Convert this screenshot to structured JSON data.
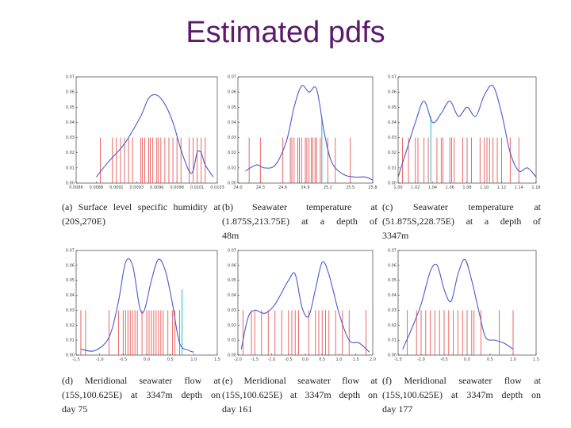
{
  "slide": {
    "title": "Estimated pdfs"
  },
  "colors": {
    "title": "#5b1a6b",
    "kde": "#4a5ad0",
    "samples": "#e02020",
    "truth": "#40c8d8",
    "axis": "#222222"
  },
  "chart_data": [
    {
      "id": "a",
      "type": "line",
      "caption_lines": [
        "(a) Surface level specific humidity at",
        "(20S,270E)"
      ],
      "xlim": [
        0.0086,
        0.01035
      ],
      "ylim": [
        0,
        0.07
      ],
      "xticks": [
        "0.0086",
        "0.0088",
        "0.0091",
        "0.0093",
        "0.0096",
        "0.0098",
        "0.0101",
        "0.0103"
      ],
      "yticks": [
        "0.00",
        "0.01",
        "0.02",
        "0.03",
        "0.04",
        "0.05",
        "0.06",
        "0.07"
      ],
      "kde_points": [
        [
          0.00885,
          0.004
        ],
        [
          0.009,
          0.014
        ],
        [
          0.0092,
          0.026
        ],
        [
          0.0094,
          0.044
        ],
        [
          0.0095,
          0.056
        ],
        [
          0.0096,
          0.058
        ],
        [
          0.0097,
          0.052
        ],
        [
          0.0098,
          0.04
        ],
        [
          0.0099,
          0.022
        ],
        [
          0.01,
          0.008
        ],
        [
          0.01005,
          0.008
        ],
        [
          0.0101,
          0.02
        ],
        [
          0.01015,
          0.02
        ],
        [
          0.0102,
          0.012
        ],
        [
          0.0103,
          0.004
        ]
      ],
      "samples": [
        0.0089,
        0.00905,
        0.0091,
        0.00915,
        0.0092,
        0.00925,
        0.0093,
        0.0094,
        0.00942,
        0.00945,
        0.0095,
        0.00952,
        0.00955,
        0.0096,
        0.00962,
        0.00965,
        0.0097,
        0.00975,
        0.0098,
        0.00985,
        0.0099,
        0.01,
        0.01005,
        0.0101,
        0.01015,
        0.0102
      ],
      "sample_height": 0.03,
      "truth": null
    },
    {
      "id": "b",
      "type": "line",
      "caption_lines": [
        "(b) Seawater temperature at",
        "(1.875S,213.75E) at a depth of",
        "48m"
      ],
      "xlim": [
        24.0,
        25.8
      ],
      "ylim": [
        0,
        0.07
      ],
      "xticks": [
        "24.0",
        "24.3",
        "24.6",
        "24.9",
        "25.2",
        "25.5",
        "25.8"
      ],
      "yticks": [
        "0.00",
        "0.01",
        "0.02",
        "0.03",
        "0.04",
        "0.05",
        "0.06",
        "0.07"
      ],
      "kde_points": [
        [
          24.1,
          0.008
        ],
        [
          24.25,
          0.012
        ],
        [
          24.35,
          0.01
        ],
        [
          24.5,
          0.012
        ],
        [
          24.65,
          0.028
        ],
        [
          24.75,
          0.05
        ],
        [
          24.85,
          0.064
        ],
        [
          24.95,
          0.06
        ],
        [
          25.05,
          0.062
        ],
        [
          25.15,
          0.034
        ],
        [
          25.25,
          0.014
        ],
        [
          25.4,
          0.006
        ],
        [
          25.55,
          0.004
        ],
        [
          25.7,
          0.004
        ],
        [
          25.8,
          0.002
        ]
      ],
      "samples": [
        24.15,
        24.3,
        24.6,
        24.7,
        24.72,
        24.75,
        24.8,
        24.82,
        24.85,
        24.9,
        24.92,
        24.95,
        24.98,
        25.0,
        25.03,
        25.05,
        25.1,
        25.2,
        25.3,
        25.5
      ],
      "sample_height": 0.03,
      "truth": 25.12
    },
    {
      "id": "c",
      "type": "line",
      "caption_lines": [
        "(c) Seawater temperature at",
        "(51.875S,228.75E) at a depth of",
        "3347m"
      ],
      "xlim": [
        1.0,
        1.16
      ],
      "ylim": [
        0,
        0.07
      ],
      "xticks": [
        "1.00",
        "1.02",
        "1.04",
        "1.06",
        "1.08",
        "1.10",
        "1.12",
        "1.14",
        "1.16"
      ],
      "yticks": [
        "0.00",
        "0.01",
        "0.02",
        "0.03",
        "0.04",
        "0.05",
        "0.06",
        "0.07"
      ],
      "kde_points": [
        [
          1.0,
          0.004
        ],
        [
          1.01,
          0.022
        ],
        [
          1.02,
          0.04
        ],
        [
          1.03,
          0.054
        ],
        [
          1.04,
          0.04
        ],
        [
          1.05,
          0.046
        ],
        [
          1.06,
          0.054
        ],
        [
          1.07,
          0.044
        ],
        [
          1.08,
          0.05
        ],
        [
          1.09,
          0.044
        ],
        [
          1.1,
          0.058
        ],
        [
          1.11,
          0.064
        ],
        [
          1.12,
          0.046
        ],
        [
          1.13,
          0.02
        ],
        [
          1.14,
          0.008
        ],
        [
          1.15,
          0.01
        ],
        [
          1.16,
          0.004
        ]
      ],
      "samples": [
        1.005,
        1.012,
        1.02,
        1.023,
        1.03,
        1.035,
        1.045,
        1.05,
        1.052,
        1.06,
        1.062,
        1.065,
        1.075,
        1.08,
        1.085,
        1.095,
        1.1,
        1.103,
        1.106,
        1.11,
        1.115,
        1.12,
        1.13,
        1.14
      ],
      "sample_height": 0.03,
      "truth": 1.038
    },
    {
      "id": "d",
      "type": "line",
      "caption_lines": [
        "(d) Meridional seawater flow at",
        "(15S,100.625E) at 3347m depth on",
        "day 75"
      ],
      "xlim": [
        -1.5,
        1.5
      ],
      "ylim": [
        0,
        0.07
      ],
      "xticks": [
        "-1.5",
        "-1.0",
        "-0.5",
        "0.0",
        "0.5",
        "1.0",
        "1.5"
      ],
      "yticks": [
        "0.00",
        "0.01",
        "0.02",
        "0.03",
        "0.04",
        "0.05",
        "0.06",
        "0.07"
      ],
      "kde_points": [
        [
          -1.4,
          0.004
        ],
        [
          -1.1,
          0.003
        ],
        [
          -0.8,
          0.012
        ],
        [
          -0.6,
          0.036
        ],
        [
          -0.45,
          0.062
        ],
        [
          -0.3,
          0.06
        ],
        [
          -0.15,
          0.032
        ],
        [
          -0.05,
          0.03
        ],
        [
          0.1,
          0.05
        ],
        [
          0.25,
          0.064
        ],
        [
          0.4,
          0.056
        ],
        [
          0.55,
          0.034
        ],
        [
          0.7,
          0.008
        ],
        [
          0.9,
          0.003
        ],
        [
          1.0,
          0.002
        ]
      ],
      "samples": [
        -1.4,
        -1.3,
        -0.8,
        -0.6,
        -0.5,
        -0.45,
        -0.4,
        -0.35,
        -0.3,
        -0.25,
        -0.2,
        -0.1,
        0.0,
        0.05,
        0.1,
        0.15,
        0.2,
        0.25,
        0.3,
        0.35,
        0.45,
        0.55,
        0.6,
        0.7
      ],
      "sample_height": 0.03,
      "truth": 0.75
    },
    {
      "id": "e",
      "type": "line",
      "caption_lines": [
        "(e) Meridional seawater flow at",
        "(15S,100.625E) at 3347m depth on",
        "day 161"
      ],
      "xlim": [
        -2.0,
        2.0
      ],
      "ylim": [
        0,
        0.07
      ],
      "xticks": [
        "-2.0",
        "-1.5",
        "-1.0",
        "-0.5",
        "0.0",
        "0.5",
        "1.0",
        "1.5",
        "2.0"
      ],
      "yticks": [
        "0.00",
        "0.01",
        "0.02",
        "0.03",
        "0.04",
        "0.05",
        "0.06",
        "0.07"
      ],
      "kde_points": [
        [
          -1.9,
          0.004
        ],
        [
          -1.7,
          0.025
        ],
        [
          -1.5,
          0.03
        ],
        [
          -1.2,
          0.028
        ],
        [
          -0.9,
          0.034
        ],
        [
          -0.5,
          0.05
        ],
        [
          -0.3,
          0.054
        ],
        [
          -0.1,
          0.032
        ],
        [
          0.1,
          0.026
        ],
        [
          0.3,
          0.044
        ],
        [
          0.5,
          0.062
        ],
        [
          0.7,
          0.054
        ],
        [
          1.0,
          0.028
        ],
        [
          1.3,
          0.01
        ],
        [
          1.6,
          0.008
        ],
        [
          1.9,
          0.002
        ]
      ],
      "samples": [
        -1.85,
        -1.6,
        -1.5,
        -1.3,
        -1.1,
        -0.9,
        -0.7,
        -0.5,
        -0.4,
        -0.3,
        -0.2,
        0.1,
        0.3,
        0.4,
        0.5,
        0.6,
        0.7,
        0.9,
        1.1,
        1.3,
        1.8
      ],
      "sample_height": 0.03,
      "truth": null
    },
    {
      "id": "f",
      "type": "line",
      "caption_lines": [
        "(f) Meridional seawater flow at",
        "(15S,100.625E) at 3347m depth on",
        "day 177"
      ],
      "xlim": [
        -1.5,
        1.5
      ],
      "ylim": [
        0,
        0.07
      ],
      "xticks": [
        "-1.5",
        "-1.0",
        "-0.5",
        "0.0",
        "0.5",
        "1.0",
        "1.5"
      ],
      "yticks": [
        "0.00",
        "0.01",
        "0.02",
        "0.03",
        "0.04",
        "0.05",
        "0.06",
        "0.07"
      ],
      "kde_points": [
        [
          -1.4,
          0.004
        ],
        [
          -1.2,
          0.018
        ],
        [
          -1.0,
          0.034
        ],
        [
          -0.8,
          0.056
        ],
        [
          -0.65,
          0.06
        ],
        [
          -0.5,
          0.044
        ],
        [
          -0.35,
          0.036
        ],
        [
          -0.2,
          0.054
        ],
        [
          -0.05,
          0.064
        ],
        [
          0.1,
          0.05
        ],
        [
          0.25,
          0.03
        ],
        [
          0.4,
          0.012
        ],
        [
          0.6,
          0.01
        ],
        [
          0.8,
          0.008
        ],
        [
          1.0,
          0.004
        ]
      ],
      "samples": [
        -1.3,
        -1.1,
        -1.0,
        -0.9,
        -0.8,
        -0.7,
        -0.6,
        -0.5,
        -0.4,
        -0.3,
        -0.2,
        -0.1,
        0.0,
        0.1,
        0.15,
        0.3,
        0.7,
        1.0
      ],
      "sample_height": 0.03,
      "truth": null
    }
  ]
}
